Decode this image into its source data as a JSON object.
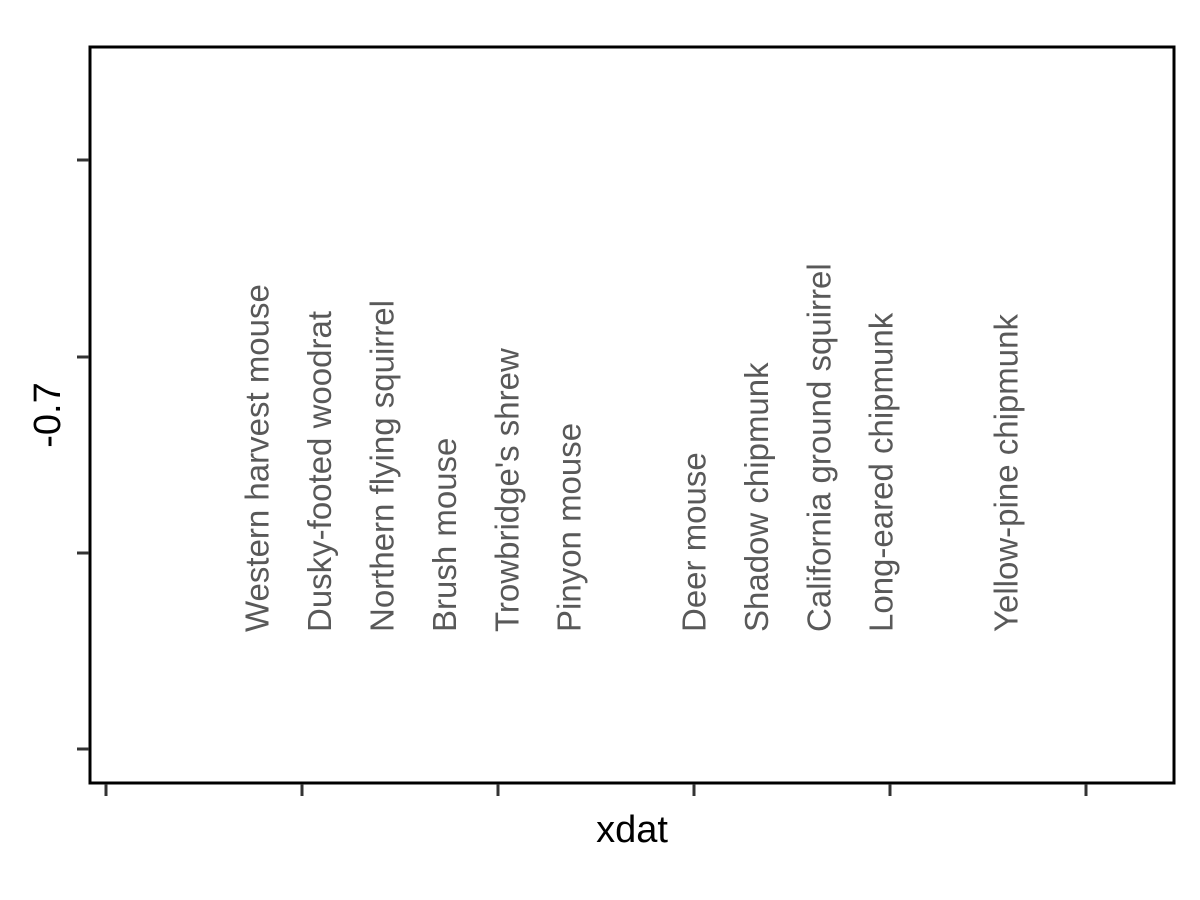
{
  "chart_data": {
    "type": "scatter",
    "xlabel": "xdat",
    "ylabel": "-0.7",
    "grid": false,
    "text_color": "#595959",
    "labels": [
      {
        "text": "Western harvest mouse",
        "x": 1
      },
      {
        "text": "Dusky-footed woodrat",
        "x": 2
      },
      {
        "text": "Northern flying squirrel",
        "x": 3
      },
      {
        "text": "Brush mouse",
        "x": 4
      },
      {
        "text": "Trowbridge's shrew",
        "x": 5
      },
      {
        "text": "Pinyon mouse",
        "x": 6
      },
      {
        "text": "Deer mouse",
        "x": 8
      },
      {
        "text": "Shadow chipmunk",
        "x": 9
      },
      {
        "text": "California ground squirrel",
        "x": 10
      },
      {
        "text": "Long-eared chipmunk",
        "x": 11
      },
      {
        "text": "Yellow-pine chipmunk",
        "x": 13
      }
    ]
  }
}
